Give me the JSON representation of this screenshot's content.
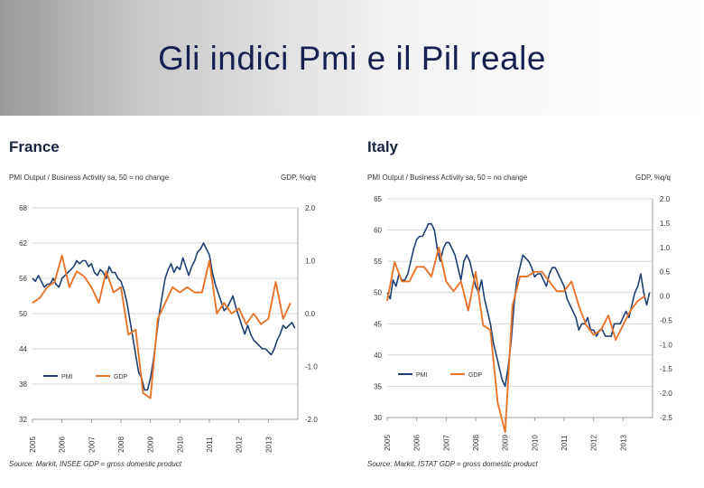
{
  "slide": {
    "title": "Gli indici  Pmi e il Pil reale"
  },
  "colors": {
    "pmi": "#1f3f73",
    "gdp": "#e8742a",
    "grid": "#c9c9c9",
    "text": "#333333",
    "heading": "#1a2440"
  },
  "chart_data": [
    {
      "type": "line",
      "title": "France",
      "subtitle": "PMI Output / Business Activity sa, 50 = no change",
      "ylabel_right": "GDP, %q/q",
      "source": "Source: Markit, INSEE GDP = gross domestic product",
      "legend_position": "bottom-left",
      "grid": true,
      "x_tick_labels": [
        "2005",
        "2006",
        "2007",
        "2008",
        "2009",
        "2010",
        "2011",
        "2012",
        "2013"
      ],
      "x_range": [
        2005.0,
        2014.0
      ],
      "y_left": {
        "ticks": [
          "68",
          "62",
          "56",
          "50",
          "44",
          "38",
          "32"
        ],
        "range": [
          32,
          68
        ]
      },
      "y_right": {
        "ticks": [
          "2.0",
          "1.0",
          "0.0",
          "-1.0",
          "-2.0"
        ],
        "range": [
          -2.0,
          2.0
        ]
      },
      "series": [
        {
          "name": "PMI",
          "axis": "left",
          "x": [
            2005.0,
            2005.1,
            2005.2,
            2005.3,
            2005.4,
            2005.5,
            2005.6,
            2005.7,
            2005.8,
            2005.9,
            2006.0,
            2006.1,
            2006.2,
            2006.3,
            2006.4,
            2006.5,
            2006.6,
            2006.7,
            2006.8,
            2006.9,
            2007.0,
            2007.1,
            2007.2,
            2007.3,
            2007.4,
            2007.5,
            2007.6,
            2007.7,
            2007.8,
            2007.9,
            2008.0,
            2008.1,
            2008.2,
            2008.3,
            2008.4,
            2008.5,
            2008.6,
            2008.7,
            2008.8,
            2008.9,
            2009.0,
            2009.1,
            2009.2,
            2009.3,
            2009.4,
            2009.5,
            2009.6,
            2009.7,
            2009.8,
            2009.9,
            2010.0,
            2010.1,
            2010.2,
            2010.3,
            2010.4,
            2010.5,
            2010.6,
            2010.7,
            2010.8,
            2010.9,
            2011.0,
            2011.1,
            2011.2,
            2011.3,
            2011.4,
            2011.5,
            2011.6,
            2011.7,
            2011.8,
            2011.9,
            2012.0,
            2012.1,
            2012.2,
            2012.3,
            2012.4,
            2012.5,
            2012.6,
            2012.7,
            2012.8,
            2012.9,
            2013.0,
            2013.1,
            2013.2,
            2013.3,
            2013.4,
            2013.5,
            2013.6,
            2013.7,
            2013.8,
            2013.9
          ],
          "values": [
            56,
            55.5,
            56.5,
            55.5,
            54.5,
            55,
            55,
            56,
            55,
            54.5,
            56,
            56.5,
            57,
            57.5,
            58,
            59,
            58.5,
            59,
            59,
            58,
            58.5,
            57,
            56.5,
            57.5,
            57,
            56,
            58,
            57,
            57,
            56,
            55.5,
            54,
            52,
            49,
            46,
            43,
            40,
            39,
            37,
            37,
            39,
            42,
            46,
            50,
            53,
            56,
            57.5,
            58.5,
            57,
            58,
            57.5,
            59.5,
            58,
            56.5,
            58,
            59,
            60.5,
            61,
            62,
            61,
            60,
            57,
            55,
            53.5,
            52,
            50.5,
            51,
            52,
            53,
            51,
            49.5,
            48,
            46.5,
            48,
            46.5,
            45.5,
            45,
            44.5,
            44,
            44,
            43.5,
            43,
            44,
            45.5,
            46.5,
            48,
            47.5,
            48,
            48.5,
            47.5
          ]
        },
        {
          "name": "GDP",
          "axis": "right",
          "x": [
            2005.0,
            2005.25,
            2005.5,
            2005.75,
            2006.0,
            2006.25,
            2006.5,
            2006.75,
            2007.0,
            2007.25,
            2007.5,
            2007.75,
            2008.0,
            2008.25,
            2008.5,
            2008.75,
            2009.0,
            2009.25,
            2009.5,
            2009.75,
            2010.0,
            2010.25,
            2010.5,
            2010.75,
            2011.0,
            2011.25,
            2011.5,
            2011.75,
            2012.0,
            2012.25,
            2012.5,
            2012.75,
            2013.0,
            2013.25,
            2013.5,
            2013.75
          ],
          "values": [
            0.2,
            0.3,
            0.5,
            0.6,
            1.1,
            0.5,
            0.8,
            0.7,
            0.5,
            0.2,
            0.8,
            0.4,
            0.5,
            -0.4,
            -0.3,
            -1.5,
            -1.6,
            -0.1,
            0.2,
            0.5,
            0.4,
            0.5,
            0.4,
            0.4,
            1.0,
            0.0,
            0.2,
            0.0,
            0.1,
            -0.2,
            0.0,
            -0.2,
            -0.1,
            0.6,
            -0.1,
            0.2
          ]
        }
      ]
    },
    {
      "type": "line",
      "title": "Italy",
      "subtitle": "PMI Output / Business Activity sa, 50 = no change",
      "ylabel_right": "GDP, %q/q",
      "source": "Source: Markit, ISTAT GDP = gross domestic product",
      "legend_position": "bottom-left",
      "grid": true,
      "x_tick_labels": [
        "2005",
        "2006",
        "2007",
        "2008",
        "2009",
        "2010",
        "2011",
        "2012",
        "2013"
      ],
      "x_range": [
        2005.0,
        2014.0
      ],
      "y_left": {
        "ticks": [
          "65",
          "60",
          "55",
          "50",
          "45",
          "40",
          "35",
          "30"
        ],
        "range": [
          30,
          65
        ]
      },
      "y_right": {
        "ticks": [
          "2.0",
          "1.5",
          "1.0",
          "0.5",
          "0.0",
          "-0.5",
          "-1.0",
          "-1.5",
          "-2.0",
          "-2.5"
        ],
        "range": [
          -2.5,
          2.0
        ]
      },
      "series": [
        {
          "name": "PMI",
          "axis": "left",
          "x": [
            2005.0,
            2005.1,
            2005.2,
            2005.3,
            2005.4,
            2005.5,
            2005.6,
            2005.7,
            2005.8,
            2005.9,
            2006.0,
            2006.1,
            2006.2,
            2006.3,
            2006.4,
            2006.5,
            2006.6,
            2006.7,
            2006.8,
            2006.9,
            2007.0,
            2007.1,
            2007.2,
            2007.3,
            2007.4,
            2007.5,
            2007.6,
            2007.7,
            2007.8,
            2007.9,
            2008.0,
            2008.1,
            2008.2,
            2008.3,
            2008.4,
            2008.5,
            2008.6,
            2008.7,
            2008.8,
            2008.9,
            2009.0,
            2009.1,
            2009.2,
            2009.3,
            2009.4,
            2009.5,
            2009.6,
            2009.7,
            2009.8,
            2009.9,
            2010.0,
            2010.1,
            2010.2,
            2010.3,
            2010.4,
            2010.5,
            2010.6,
            2010.7,
            2010.8,
            2010.9,
            2011.0,
            2011.1,
            2011.2,
            2011.3,
            2011.4,
            2011.5,
            2011.6,
            2011.7,
            2011.8,
            2011.9,
            2012.0,
            2012.1,
            2012.2,
            2012.3,
            2012.4,
            2012.5,
            2012.6,
            2012.7,
            2012.8,
            2012.9,
            2013.0,
            2013.1,
            2013.2,
            2013.3,
            2013.4,
            2013.5,
            2013.6,
            2013.7,
            2013.8,
            2013.9
          ],
          "values": [
            50,
            49,
            52,
            51,
            53,
            52,
            52,
            53,
            55,
            57,
            58.5,
            59,
            59,
            60,
            61,
            61,
            60,
            57,
            55,
            57,
            58,
            58,
            57,
            56,
            54,
            52,
            55,
            56,
            55,
            53,
            51,
            50,
            52,
            49,
            47,
            45,
            42,
            40,
            38,
            36,
            35,
            38,
            42,
            48,
            52,
            54,
            56,
            55.5,
            55,
            54,
            52.5,
            53,
            53,
            52,
            51,
            53,
            54,
            54,
            53,
            52,
            51,
            49,
            48,
            47,
            46,
            44,
            45,
            45,
            46,
            44,
            44,
            43,
            44,
            44,
            43,
            43,
            43,
            45,
            45,
            45,
            46,
            47,
            46,
            48,
            50,
            51,
            53,
            50,
            48,
            50
          ]
        },
        {
          "name": "GDP",
          "axis": "right",
          "x": [
            2005.0,
            2005.25,
            2005.5,
            2005.75,
            2006.0,
            2006.25,
            2006.5,
            2006.75,
            2007.0,
            2007.25,
            2007.5,
            2007.75,
            2008.0,
            2008.25,
            2008.5,
            2008.75,
            2009.0,
            2009.25,
            2009.5,
            2009.75,
            2010.0,
            2010.25,
            2010.5,
            2010.75,
            2011.0,
            2011.25,
            2011.5,
            2011.75,
            2012.0,
            2012.25,
            2012.5,
            2012.75,
            2013.0,
            2013.25,
            2013.5,
            2013.75
          ],
          "values": [
            -0.1,
            0.7,
            0.3,
            0.3,
            0.6,
            0.6,
            0.4,
            1.0,
            0.3,
            0.1,
            0.3,
            -0.3,
            0.5,
            -0.6,
            -0.7,
            -2.2,
            -2.8,
            -0.2,
            0.4,
            0.4,
            0.5,
            0.5,
            0.3,
            0.1,
            0.1,
            0.3,
            -0.2,
            -0.6,
            -0.8,
            -0.7,
            -0.4,
            -0.9,
            -0.6,
            -0.3,
            -0.1,
            0.0
          ]
        }
      ]
    }
  ]
}
